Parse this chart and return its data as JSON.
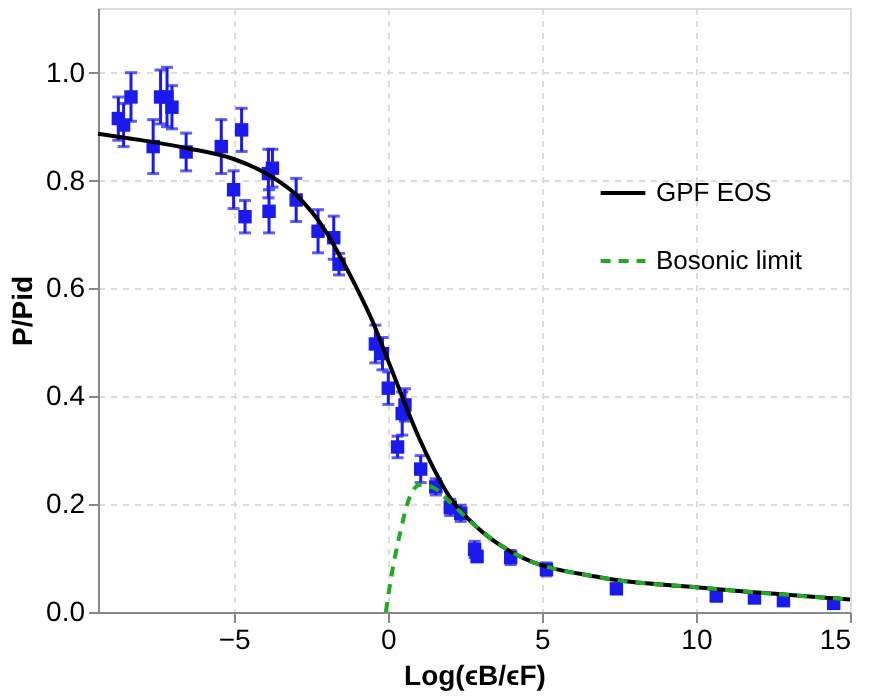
{
  "chart_data": {
    "type": "scatter",
    "xlabel": "Log(ϵB/ϵF)",
    "ylabel": "P/Pid",
    "xlim": [
      -9.4,
      15
    ],
    "ylim": [
      0,
      1.12
    ],
    "xticks": [
      -5,
      0,
      5,
      10,
      15
    ],
    "yticks": [
      {
        "value": 0,
        "label": "0.0"
      },
      {
        "value": 0.2,
        "label": "0.2"
      },
      {
        "value": 0.4,
        "label": "0.4"
      },
      {
        "value": 0.6,
        "label": "0.6"
      },
      {
        "value": 0.8,
        "label": "0.8"
      },
      {
        "value": 1.0,
        "label": "1.0"
      }
    ],
    "grid": true,
    "legend": "right",
    "series": [
      {
        "color": "#1a1aee",
        "marker": "square",
        "x": [
          -8.74,
          -8.57,
          -8.33,
          -7.61,
          -7.37,
          -7.16,
          -7.0,
          -6.54,
          -5.4,
          -4.74,
          -5.0,
          -4.63,
          -3.87,
          -3.74,
          -3.85,
          -2.97,
          -2.26,
          -1.75,
          -1.58,
          -0.4,
          -0.17,
          0.02,
          0.47,
          0.56,
          0.32,
          1.07,
          1.56,
          2.03,
          2.37,
          2.82,
          2.9,
          3.99,
          5.15,
          7.42,
          10.66,
          11.9,
          12.84,
          14.47
        ],
        "values": [
          0.915,
          0.903,
          0.955,
          0.863,
          0.955,
          0.955,
          0.936,
          0.853,
          0.863,
          0.894,
          0.783,
          0.733,
          0.813,
          0.823,
          0.743,
          0.764,
          0.706,
          0.694,
          0.645,
          0.497,
          0.479,
          0.415,
          0.368,
          0.384,
          0.306,
          0.265,
          0.232,
          0.194,
          0.183,
          0.116,
          0.103,
          0.101,
          0.079,
          0.043,
          0.03,
          0.026,
          0.021,
          0.016
        ],
        "errors": [
          0.04,
          0.04,
          0.045,
          0.05,
          0.05,
          0.055,
          0.04,
          0.035,
          0.05,
          0.04,
          0.035,
          0.03,
          0.045,
          0.035,
          0.04,
          0.04,
          0.04,
          0.04,
          0.02,
          0.035,
          0.03,
          0.03,
          0.04,
          0.03,
          0.02,
          0.025,
          0.015,
          0.015,
          0.015,
          0.015,
          0.01,
          0.013,
          0.012,
          0.008,
          0.01,
          0.008,
          0.008,
          0.007
        ]
      },
      {
        "type": "line",
        "name": "GPF EOS",
        "color": "#000000",
        "line_style": "solid",
        "x": [
          -9.4,
          -8,
          -6.5,
          -5,
          -4,
          -3,
          -2,
          -1.5,
          -1,
          -0.5,
          0,
          0.5,
          1,
          1.5,
          2.0,
          2.86,
          4.15,
          6.9,
          10,
          15
        ],
        "values": [
          0.887,
          0.875,
          0.86,
          0.84,
          0.815,
          0.775,
          0.705,
          0.655,
          0.6,
          0.54,
          0.468,
          0.395,
          0.325,
          0.265,
          0.214,
          0.159,
          0.107,
          0.064,
          0.046,
          0.023
        ]
      },
      {
        "type": "line",
        "name": "Bosonic limit",
        "color": "#22aa22",
        "line_style": "dashed",
        "x": [
          -0.06,
          0.1,
          0.4,
          0.72,
          1.05,
          1.5,
          2.0,
          2.86,
          4.15,
          6.9,
          10,
          15
        ],
        "values": [
          0,
          0.06,
          0.146,
          0.214,
          0.236,
          0.23,
          0.205,
          0.159,
          0.107,
          0.064,
          0.046,
          0.023
        ]
      }
    ]
  }
}
